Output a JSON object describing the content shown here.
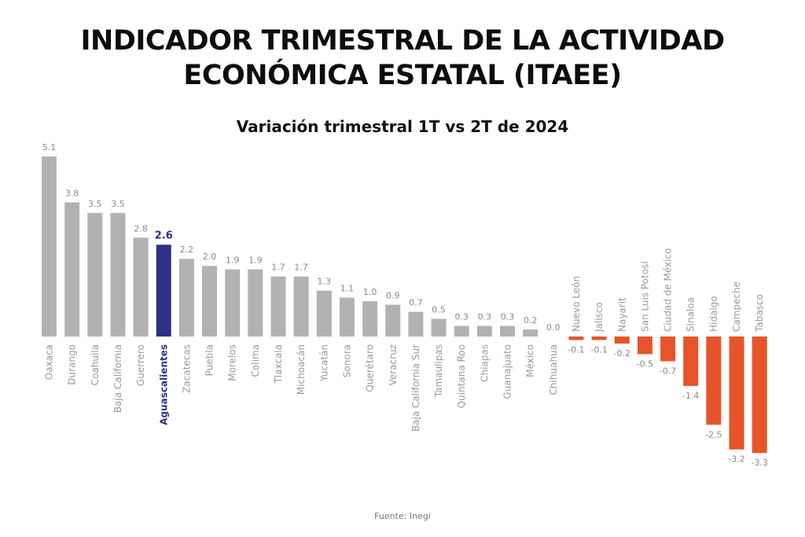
{
  "header": {
    "title_line1": "INDICADOR TRIMESTRAL DE LA ACTIVIDAD",
    "title_line2": "ECONÓMICA ESTATAL (ITAEE)",
    "subtitle": "Variación trimestral 1T vs 2T de 2024"
  },
  "footer": {
    "source": "Fuente: Inegi"
  },
  "chart_data": {
    "type": "bar",
    "title": "INDICADOR TRIMESTRAL DE LA ACTIVIDAD ECONÓMICA ESTATAL (ITAEE)",
    "subtitle": "Variación trimestral 1T vs 2T de 2024",
    "xlabel": "",
    "ylabel": "",
    "ylim": [
      -3.3,
      5.1
    ],
    "grid": false,
    "legend": "none",
    "categories": [
      "Oaxaca",
      "Durango",
      "Coahuila",
      "Baja California",
      "Guerrero",
      "Aguascalientes",
      "Zacatecas",
      "Puebla",
      "Morelos",
      "Colima",
      "Tlaxcala",
      "Michoacán",
      "Yucatán",
      "Sonora",
      "Querétaro",
      "Veracruz",
      "Baja California Sur",
      "Tamaulipas",
      "Quintana Roo",
      "Chiapas",
      "Guanajuato",
      "México",
      "Chihuahua",
      "Nuevo León",
      "Jalisco",
      "Nayarit",
      "San Luis Potosí",
      "Ciudad de México",
      "Sinaloa",
      "Hidalgo",
      "Campeche",
      "Tabasco"
    ],
    "values": [
      5.1,
      3.8,
      3.5,
      3.5,
      2.8,
      2.6,
      2.2,
      2.0,
      1.9,
      1.9,
      1.7,
      1.7,
      1.3,
      1.1,
      1.0,
      0.9,
      0.7,
      0.5,
      0.3,
      0.3,
      0.3,
      0.2,
      0.0,
      -0.1,
      -0.1,
      -0.2,
      -0.5,
      -0.7,
      -1.4,
      -2.5,
      -3.2,
      -3.3
    ],
    "labels": [
      "5.1",
      "3.8",
      "3.5",
      "3.5",
      "2.8",
      "2.6",
      "2.2",
      "2.0",
      "1.9",
      "1.9",
      "1.7",
      "1.7",
      "1.3",
      "1.1",
      "1.0",
      "0.9",
      "0.7",
      "0.5",
      "0.3",
      "0.3",
      "0.3",
      "0.2",
      "0.0",
      "-0.1",
      "-0.1",
      "-0.2",
      "-0.5",
      "-0.7",
      "-1.4",
      "-2.5",
      "-3.2",
      "-3.3"
    ],
    "highlight": "Aguascalientes",
    "colors": {
      "positive": "#b2b2b2",
      "negative": "#e8542a",
      "highlight": "#2d3184"
    }
  }
}
